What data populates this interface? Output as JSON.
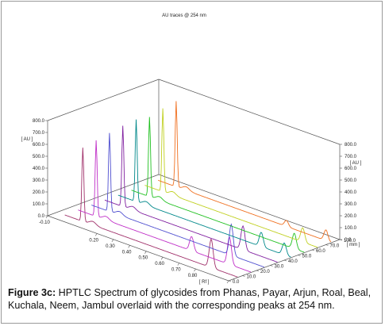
{
  "chart_data": {
    "type": "line",
    "title": "AU traces @ 254 nm",
    "y_axis_label": "[ AU ]",
    "x_axis_label": "[ Rf ]",
    "z_axis_label": "[ mm ]",
    "y_ticks": [
      "0.0",
      "100.0",
      "200.0",
      "300.0",
      "400.0",
      "500.0",
      "600.0",
      "700.0",
      "800.0"
    ],
    "x_ticks": [
      "-0.10",
      "0.20",
      "0.30",
      "0.40",
      "0.50",
      "0.60",
      "0.70",
      "0.80",
      "1.00"
    ],
    "z_ticks": [
      "0.0",
      "10.0",
      "20.0",
      "30.0",
      "40.0",
      "50.0",
      "60.0",
      "70.0",
      "100.0"
    ],
    "ylim": [
      0,
      800
    ],
    "xlim": [
      -0.1,
      1.0
    ],
    "tracks": [
      {
        "color": "#a0306a",
        "peaks": [
          {
            "rf": 0.06,
            "au": 620
          },
          {
            "rf": 0.84,
            "au": 240
          }
        ]
      },
      {
        "color": "#c030c8",
        "peaks": [
          {
            "rf": 0.06,
            "au": 640
          },
          {
            "rf": 0.64,
            "au": 120
          },
          {
            "rf": 0.87,
            "au": 230
          }
        ]
      },
      {
        "color": "#5050d0",
        "peaks": [
          {
            "rf": 0.06,
            "au": 660
          },
          {
            "rf": 0.8,
            "au": 260
          }
        ]
      },
      {
        "color": "#8020a0",
        "peaks": [
          {
            "rf": 0.06,
            "au": 680
          },
          {
            "rf": 0.79,
            "au": 200
          }
        ]
      },
      {
        "color": "#00888a",
        "peaks": [
          {
            "rf": 0.06,
            "au": 690
          },
          {
            "rf": 0.82,
            "au": 120
          },
          {
            "rf": 0.96,
            "au": 100
          }
        ]
      },
      {
        "color": "#20c020",
        "peaks": [
          {
            "rf": 0.06,
            "au": 670
          },
          {
            "rf": 0.94,
            "au": 130
          }
        ]
      },
      {
        "color": "#c0d020",
        "peaks": [
          {
            "rf": 0.06,
            "au": 700
          },
          {
            "rf": 0.91,
            "au": 120
          }
        ]
      },
      {
        "color": "#f07020",
        "peaks": [
          {
            "rf": 0.06,
            "au": 720
          },
          {
            "rf": 0.73,
            "au": 50
          },
          {
            "rf": 0.97,
            "au": 90
          }
        ]
      }
    ]
  },
  "caption": {
    "label": "Figure 3c:",
    "text": " HPTLC Spectrum of glycosides from Phanas, Payar, Arjun, Roal, Beal, Kuchala, Neem, Jambul overlaid with the corresponding peaks at 254 nm."
  }
}
